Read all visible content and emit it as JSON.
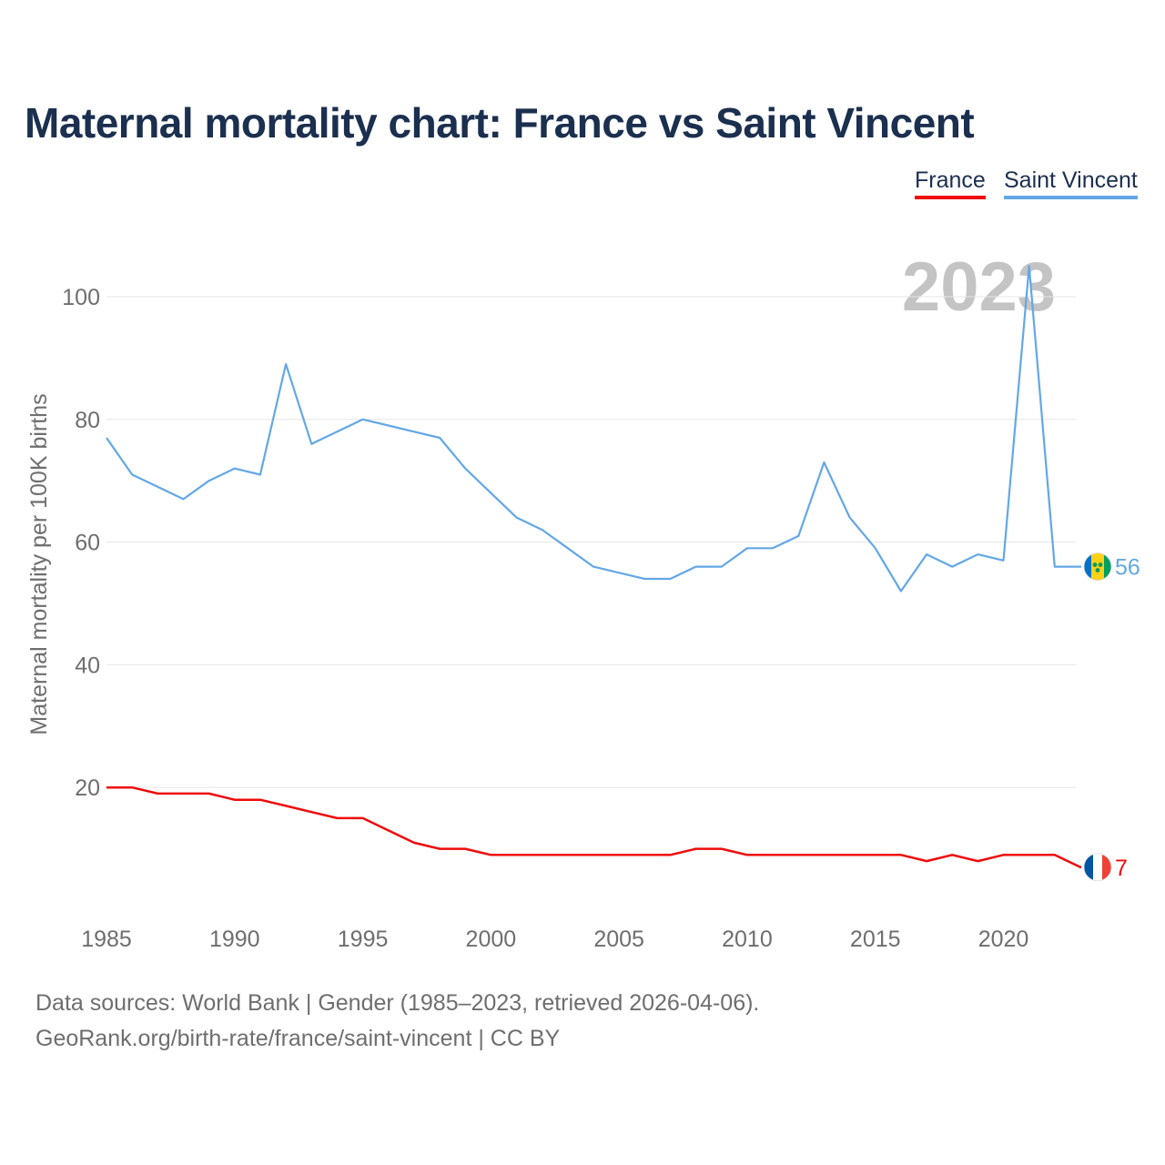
{
  "title": "Maternal mortality chart: France vs Saint Vincent",
  "legend": {
    "france": "France",
    "saint_vincent": "Saint Vincent"
  },
  "colors": {
    "france": "#ef0a0a",
    "saint_vincent": "#63a7e6",
    "title": "#1b2f4f",
    "year_watermark": "#c4c4c4",
    "grid": "#e6e6e6",
    "text": "#6e6e6e"
  },
  "footer": {
    "source": "Data sources: World Bank | Gender (1985–2023, retrieved 2026-04-06).",
    "credit": "GeoRank.org/birth-rate/france/saint-vincent | CC BY"
  },
  "chart_data": {
    "type": "line",
    "title": "Maternal mortality chart: France vs Saint Vincent",
    "xlabel": "",
    "ylabel": "Maternal mortality per 100K births",
    "year_label": "2023",
    "xlim": [
      1985,
      2023
    ],
    "ylim": [
      0,
      110
    ],
    "x_ticks": [
      1985,
      1990,
      1995,
      2000,
      2005,
      2010,
      2015,
      2020
    ],
    "y_ticks": [
      20,
      40,
      60,
      80,
      100
    ],
    "grid": true,
    "legend_position": "top-right",
    "x": [
      1985,
      1986,
      1987,
      1988,
      1989,
      1990,
      1991,
      1992,
      1993,
      1994,
      1995,
      1996,
      1997,
      1998,
      1999,
      2000,
      2001,
      2002,
      2003,
      2004,
      2005,
      2006,
      2007,
      2008,
      2009,
      2010,
      2011,
      2012,
      2013,
      2014,
      2015,
      2016,
      2017,
      2018,
      2019,
      2020,
      2021,
      2022,
      2023
    ],
    "series": [
      {
        "name": "France",
        "color": "#ef0a0a",
        "end_label": "7",
        "flag": "france-flag",
        "values": [
          20,
          20,
          19,
          19,
          19,
          18,
          18,
          17,
          16,
          15,
          15,
          13,
          11,
          10,
          10,
          9,
          9,
          9,
          9,
          9,
          9,
          9,
          9,
          10,
          10,
          9,
          9,
          9,
          9,
          9,
          9,
          9,
          8,
          9,
          8,
          9,
          9,
          9,
          7
        ]
      },
      {
        "name": "Saint Vincent",
        "color": "#63a7e6",
        "end_label": "56",
        "flag": "saint-vincent-flag",
        "values": [
          77,
          71,
          69,
          67,
          70,
          72,
          71,
          89,
          76,
          78,
          80,
          79,
          78,
          77,
          72,
          68,
          64,
          62,
          59,
          56,
          55,
          54,
          54,
          56,
          56,
          59,
          59,
          61,
          73,
          64,
          59,
          52,
          58,
          56,
          58,
          57,
          105,
          56,
          56
        ]
      }
    ]
  }
}
